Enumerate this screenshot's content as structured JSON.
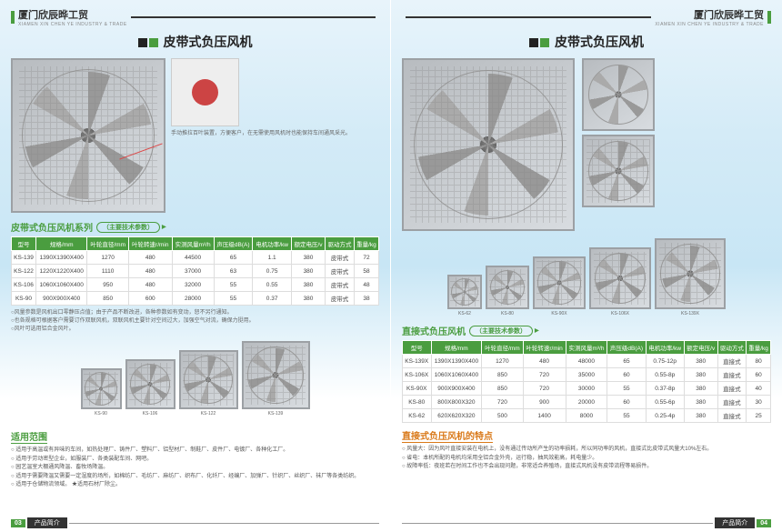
{
  "brand_cn": "厦门欣辰晔工贸",
  "brand_en": "XIAMEN XIN CHEN YE INDUSTRY & TRADE",
  "title_belt": "皮带式负压风机",
  "title_direct": "直接式负压风机",
  "hero_note": "手动推拉百叶装置，方便客户，在无需使用风机时也能保持车间通风采光。",
  "belt_series_title": "皮带式负压风机系列",
  "belt_series_sub": "（主要技术参数）",
  "direct_series_title": "直接式负压风机",
  "direct_series_sub": "（主要技术参数）",
  "scope_title": "适用范围",
  "char_title": "直接式负压风机的特点",
  "footer_label": "产品简介",
  "page_left": "03",
  "page_right": "04",
  "belt_table": {
    "headers": [
      "型号",
      "规格/mm",
      "叶轮直径/mm",
      "叶轮转速r/min",
      "实测风量m³/h",
      "声压级dB(A)",
      "电机功率/kw",
      "额定电压/v",
      "驱动方式",
      "重量/kg"
    ],
    "rows": [
      [
        "KS-139",
        "1390X1390X400",
        "1270",
        "480",
        "44500",
        "65",
        "1.1",
        "380",
        "皮带式",
        "72"
      ],
      [
        "KS-122",
        "1220X1220X400",
        "1110",
        "480",
        "37000",
        "63",
        "0.75",
        "380",
        "皮带式",
        "58"
      ],
      [
        "KS-106",
        "1060X1060X400",
        "950",
        "480",
        "32000",
        "55",
        "0.55",
        "380",
        "皮带式",
        "48"
      ],
      [
        "KS-90",
        "900X900X400",
        "850",
        "600",
        "28000",
        "55",
        "0.37",
        "380",
        "皮带式",
        "38"
      ]
    ]
  },
  "direct_table": {
    "headers": [
      "型号",
      "规格/mm",
      "叶轮直径/mm",
      "叶轮转速r/min",
      "实测风量m³/h",
      "声压级dB(A)",
      "电机功率/kw",
      "额定电压/v",
      "驱动方式",
      "重量/kg"
    ],
    "rows": [
      [
        "KS-139X",
        "1390X1390X400",
        "1270",
        "480",
        "48000",
        "65",
        "0.75-12p",
        "380",
        "直接式",
        "80"
      ],
      [
        "KS-106X",
        "1060X1060X400",
        "850",
        "720",
        "35000",
        "60",
        "0.55-8p",
        "380",
        "直接式",
        "60"
      ],
      [
        "KS-90X",
        "900X900X400",
        "850",
        "720",
        "30000",
        "55",
        "0.37-8p",
        "380",
        "直接式",
        "40"
      ],
      [
        "KS-80",
        "800X800X320",
        "720",
        "900",
        "20000",
        "60",
        "0.55-6p",
        "380",
        "直接式",
        "30"
      ],
      [
        "KS-62",
        "620X620X320",
        "500",
        "1400",
        "8000",
        "55",
        "0.25-4p",
        "380",
        "直接式",
        "25"
      ]
    ]
  },
  "belt_notes": [
    "○风量参数是风机出口零静压点值；由于产品不断改进，各种参数如有变动，恕不另行通知。",
    "○也各规格可根据客户需要订作双联风机，双联风机主要针对空间过大，加强空气对流，确保力挺用。",
    "○风叶可选用铝合金风叶。"
  ],
  "lineup_left": [
    "KS-90",
    "KS-106",
    "KS-122",
    "KS-139"
  ],
  "lineup_right": [
    "KS-62",
    "KS-80",
    "KS-90X",
    "KS-106X",
    "KS-139X"
  ],
  "scope_items": [
    "○ 适用于高温或有异味的车间，如热处理厂、铸件厂、塑料厂、铝型材厂、制鞋厂、皮件厂、电镀厂、各种化工厂。",
    "○ 适用于劳动密型企业，如服装厂、各类装配车间、网吧。",
    "○ 园艺温室大棚通风降温、畜牧场降温。",
    "○ 适用于需要降温又需要一定湿度的场所，如棉纺厂、毛纺厂、麻纺厂、织布厂、化纤厂、经编厂、加弹厂、针织厂、丝织厂、袜厂等各类纺织。",
    "○ 适用于仓储物流领域。    ★适用石材厂除尘。"
  ],
  "char_items": [
    "○ 风量大：因为风叶直接安装在电机上，没有通过传动所产生的功率损耗，所以同功率的风机，直接式比皮带式风量大10%左右。",
    "○ 省电：本机所配的电机均采用全铝合金外壳，运行稳，抽风效能高，耗电量少。",
    "○ 故障率低：夜班若在时间工作也不会出现问题，非常适合养殖场，直接式风机没有皮带流程等易损件。"
  ],
  "colors": {
    "green": "#4a9d3f",
    "orange": "#d97818",
    "header_bg": "#4a9d3f"
  }
}
